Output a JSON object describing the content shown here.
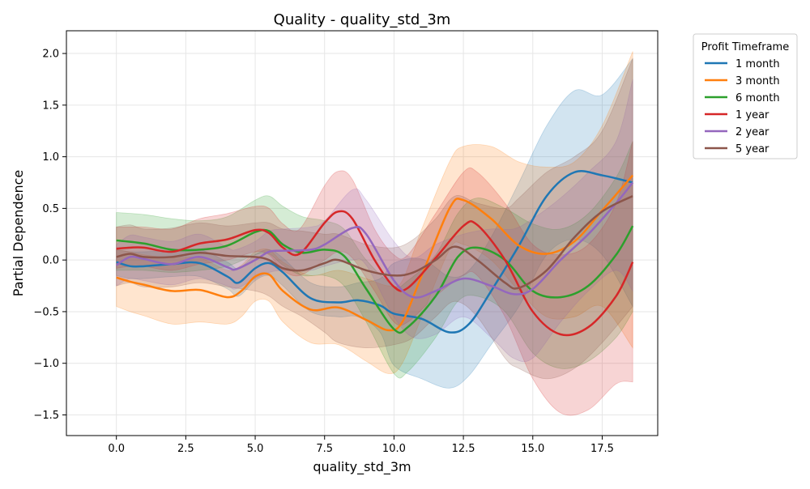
{
  "chart_data": {
    "type": "line",
    "title": "Quality - quality_std_3m",
    "xlabel": "quality_std_3m",
    "ylabel": "Partial Dependence",
    "xlim": [
      -1.8,
      19.5
    ],
    "ylim": [
      -1.7,
      2.22
    ],
    "x_ticks": [
      0.0,
      2.5,
      5.0,
      7.5,
      10.0,
      12.5,
      15.0,
      17.5
    ],
    "x_tick_labels": [
      "0.0",
      "2.5",
      "5.0",
      "7.5",
      "10.0",
      "12.5",
      "15.0",
      "17.5"
    ],
    "y_ticks": [
      -1.5,
      -1.0,
      -0.5,
      0.0,
      0.5,
      1.0,
      1.5,
      2.0
    ],
    "y_tick_labels": [
      "−1.5",
      "−1.0",
      "−0.5",
      "0.0",
      "0.5",
      "1.0",
      "1.5",
      "2.0"
    ],
    "grid": true,
    "legend": {
      "title": "Profit Timeframe",
      "placement": "outside-top-right"
    },
    "series": [
      {
        "name": "1 month",
        "color": "#1f77b4",
        "x": [
          0,
          0.5,
          1,
          2,
          3,
          4,
          4.4,
          5,
          5.5,
          6,
          7,
          8,
          8.7,
          9.5,
          10,
          11,
          12,
          12.7,
          13.5,
          14.5,
          15.5,
          16.5,
          17.5,
          18.6
        ],
        "y": [
          -0.02,
          -0.06,
          -0.06,
          -0.04,
          -0.03,
          -0.16,
          -0.22,
          -0.08,
          -0.03,
          -0.12,
          -0.37,
          -0.41,
          -0.39,
          -0.44,
          -0.52,
          -0.57,
          -0.7,
          -0.62,
          -0.3,
          0.14,
          0.62,
          0.85,
          0.82,
          0.75
        ],
        "lower": [
          -0.15,
          -0.18,
          -0.18,
          -0.16,
          -0.16,
          -0.28,
          -0.35,
          -0.2,
          -0.15,
          -0.25,
          -0.5,
          -0.55,
          -0.55,
          -0.7,
          -1.02,
          -1.15,
          -1.24,
          -1.12,
          -0.82,
          -0.45,
          0.05,
          0.2,
          0.05,
          -0.45
        ],
        "upper": [
          0.1,
          0.08,
          0.08,
          0.09,
          0.1,
          -0.02,
          -0.08,
          0.05,
          0.1,
          0.02,
          -0.22,
          -0.26,
          -0.22,
          -0.18,
          -0.03,
          0.01,
          -0.16,
          -0.1,
          0.22,
          0.75,
          1.3,
          1.64,
          1.6,
          1.95
        ]
      },
      {
        "name": "3 month",
        "color": "#ff7f0e",
        "x": [
          0,
          0.5,
          1,
          2,
          3,
          4,
          4.5,
          5,
          5.5,
          6,
          7,
          8,
          9,
          9.8,
          10.3,
          11,
          12,
          12.5,
          13.5,
          14.5,
          15.5,
          16.5,
          17.5,
          18.6
        ],
        "y": [
          -0.17,
          -0.21,
          -0.24,
          -0.3,
          -0.29,
          -0.36,
          -0.3,
          -0.16,
          -0.14,
          -0.3,
          -0.48,
          -0.46,
          -0.58,
          -0.68,
          -0.6,
          -0.15,
          0.5,
          0.58,
          0.4,
          0.14,
          0.06,
          0.18,
          0.48,
          0.82
        ],
        "lower": [
          -0.45,
          -0.5,
          -0.54,
          -0.62,
          -0.6,
          -0.62,
          -0.55,
          -0.4,
          -0.4,
          -0.6,
          -0.8,
          -0.82,
          -0.98,
          -1.1,
          -1.0,
          -0.55,
          0.1,
          0.15,
          0.0,
          -0.3,
          -0.55,
          -0.55,
          -0.45,
          -0.85
        ],
        "upper": [
          0.1,
          0.08,
          0.05,
          0.02,
          0.02,
          -0.1,
          -0.05,
          0.08,
          0.1,
          -0.02,
          -0.15,
          -0.1,
          -0.18,
          -0.25,
          -0.2,
          0.3,
          0.95,
          1.1,
          1.1,
          0.95,
          0.9,
          0.95,
          1.3,
          2.02
        ]
      },
      {
        "name": "6 month",
        "color": "#2ca02c",
        "x": [
          0,
          1,
          2,
          3,
          4,
          5,
          5.5,
          6,
          6.7,
          7.5,
          8.2,
          9,
          10,
          10.5,
          11.5,
          12.3,
          13,
          14,
          15,
          16,
          17,
          18,
          18.6
        ],
        "y": [
          0.19,
          0.16,
          0.1,
          0.1,
          0.14,
          0.27,
          0.28,
          0.15,
          0.07,
          0.1,
          0.04,
          -0.28,
          -0.67,
          -0.65,
          -0.35,
          0.03,
          0.12,
          0.0,
          -0.3,
          -0.36,
          -0.25,
          0.05,
          0.33
        ],
        "lower": [
          -0.1,
          -0.1,
          -0.12,
          -0.1,
          -0.06,
          0.05,
          0.06,
          -0.05,
          -0.15,
          -0.15,
          -0.25,
          -0.6,
          -1.1,
          -1.08,
          -0.75,
          -0.4,
          -0.35,
          -0.5,
          -0.9,
          -1.05,
          -0.98,
          -0.75,
          -0.5
        ],
        "upper": [
          0.46,
          0.44,
          0.4,
          0.38,
          0.42,
          0.58,
          0.62,
          0.52,
          0.42,
          0.38,
          0.3,
          0.0,
          -0.25,
          -0.2,
          0.05,
          0.45,
          0.6,
          0.5,
          0.35,
          0.3,
          0.45,
          0.8,
          1.15
        ]
      },
      {
        "name": "1 year",
        "color": "#d62728",
        "x": [
          0,
          0.5,
          1,
          2,
          3,
          4,
          5,
          5.5,
          6,
          6.6,
          7.5,
          8,
          8.5,
          9.3,
          10,
          10.5,
          11.5,
          12.5,
          13,
          14,
          15,
          16,
          17,
          18,
          18.6
        ],
        "y": [
          0.11,
          0.12,
          0.12,
          0.08,
          0.16,
          0.2,
          0.29,
          0.26,
          0.12,
          0.06,
          0.36,
          0.47,
          0.4,
          0.0,
          -0.26,
          -0.27,
          0.02,
          0.33,
          0.34,
          0.0,
          -0.5,
          -0.72,
          -0.65,
          -0.35,
          -0.02
        ],
        "lower": [
          -0.08,
          -0.06,
          -0.06,
          -0.1,
          -0.04,
          0.0,
          0.08,
          0.05,
          -0.1,
          -0.15,
          0.0,
          0.08,
          0.02,
          -0.3,
          -0.6,
          -0.6,
          -0.35,
          -0.15,
          -0.15,
          -0.55,
          -1.15,
          -1.48,
          -1.45,
          -1.2,
          -1.18
        ],
        "upper": [
          0.32,
          0.32,
          0.32,
          0.3,
          0.4,
          0.45,
          0.52,
          0.5,
          0.35,
          0.3,
          0.72,
          0.86,
          0.78,
          0.3,
          0.05,
          0.05,
          0.45,
          0.85,
          0.85,
          0.55,
          0.15,
          0.05,
          0.15,
          0.55,
          1.15
        ]
      },
      {
        "name": "2 year",
        "color": "#9467bd",
        "x": [
          0,
          0.5,
          1,
          2,
          3,
          4,
          4.3,
          5,
          5.5,
          6,
          7,
          7.5,
          8.5,
          9,
          10,
          10.7,
          11.5,
          12.5,
          13.5,
          14.3,
          15,
          16,
          17,
          18,
          18.6
        ],
        "y": [
          -0.05,
          0.03,
          0.01,
          -0.04,
          0.03,
          -0.07,
          -0.09,
          0.0,
          0.08,
          0.09,
          0.1,
          0.15,
          0.31,
          0.25,
          -0.2,
          -0.36,
          -0.3,
          -0.18,
          -0.25,
          -0.33,
          -0.28,
          0.0,
          0.25,
          0.55,
          0.75
        ],
        "lower": [
          -0.25,
          -0.18,
          -0.2,
          -0.24,
          -0.18,
          -0.25,
          -0.28,
          -0.18,
          -0.12,
          -0.1,
          -0.1,
          -0.06,
          0.0,
          -0.05,
          -0.55,
          -0.75,
          -0.72,
          -0.55,
          -0.75,
          -0.95,
          -0.95,
          -0.6,
          -0.3,
          -0.1,
          -0.3
        ],
        "upper": [
          0.15,
          0.24,
          0.22,
          0.18,
          0.25,
          0.12,
          0.1,
          0.18,
          0.28,
          0.3,
          0.32,
          0.38,
          0.68,
          0.58,
          0.18,
          0.02,
          0.15,
          0.25,
          0.3,
          0.3,
          0.4,
          0.6,
          0.85,
          1.15,
          1.75
        ]
      },
      {
        "name": "5 year",
        "color": "#8c564b",
        "x": [
          0,
          0.5,
          1,
          2,
          3,
          4,
          5,
          5.5,
          6,
          6.7,
          7.5,
          8,
          9,
          10,
          10.7,
          11.5,
          12.2,
          13,
          14,
          14.5,
          15.5,
          16.5,
          17.5,
          18.6
        ],
        "y": [
          0.03,
          0.06,
          0.03,
          0.03,
          0.07,
          0.04,
          0.03,
          0.0,
          -0.08,
          -0.1,
          -0.03,
          0.0,
          -0.1,
          -0.15,
          -0.12,
          0.0,
          0.13,
          0.0,
          -0.22,
          -0.27,
          -0.1,
          0.22,
          0.47,
          0.62
        ],
        "lower": [
          -0.25,
          -0.22,
          -0.26,
          -0.26,
          -0.22,
          -0.26,
          -0.3,
          -0.35,
          -0.45,
          -0.55,
          -0.7,
          -0.8,
          -0.85,
          -0.82,
          -0.75,
          -0.55,
          -0.4,
          -0.55,
          -0.95,
          -1.05,
          -1.15,
          -1.05,
          -0.8,
          -0.45
        ],
        "upper": [
          0.32,
          0.34,
          0.3,
          0.31,
          0.36,
          0.33,
          0.36,
          0.36,
          0.3,
          0.28,
          0.25,
          0.25,
          0.15,
          0.12,
          0.2,
          0.4,
          0.62,
          0.55,
          0.5,
          0.6,
          0.85,
          1.0,
          1.25,
          1.95
        ]
      }
    ]
  }
}
